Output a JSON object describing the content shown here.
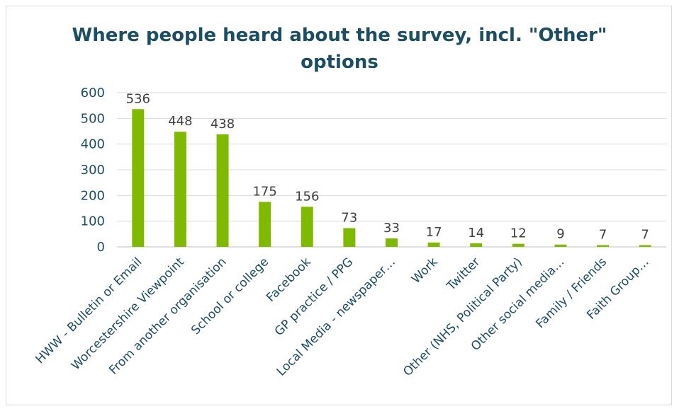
{
  "chart_data": {
    "type": "bar",
    "title_line1": "Where people heard about the survey, incl. \"Other\"",
    "title_line2": "options",
    "categories": [
      "HWW - Bulletin or Email",
      "Worcestershire Viewpoint",
      "From another organisation",
      "School or college",
      "Facebook",
      "GP practice / PPG",
      "Local Media - newspaper…",
      "Work",
      "Twitter",
      "Other (NHS, Political Party)",
      "Other social media…",
      "Family / Friends",
      "Faith Group…"
    ],
    "values": [
      536,
      448,
      438,
      175,
      156,
      73,
      33,
      17,
      14,
      12,
      9,
      7,
      7
    ],
    "ylim": [
      0,
      600
    ],
    "yticks": [
      0,
      100,
      200,
      300,
      400,
      500,
      600
    ],
    "grid": true,
    "bar_color": "#7fba00"
  }
}
